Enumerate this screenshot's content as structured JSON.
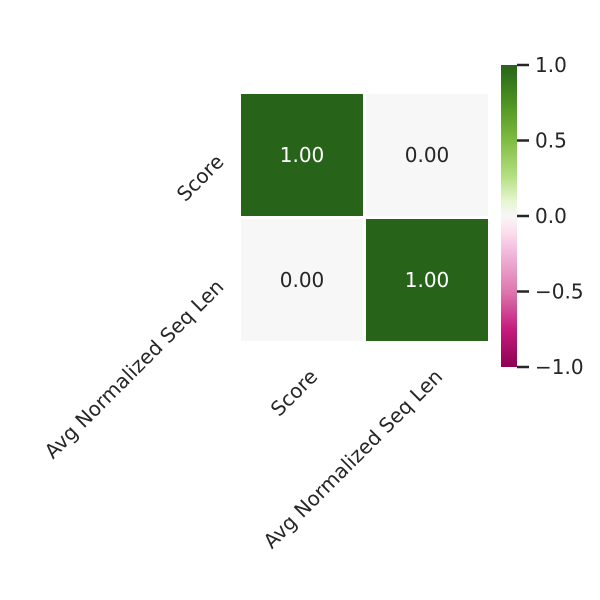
{
  "chart_data": {
    "type": "heatmap",
    "title": "",
    "xlabel": "",
    "ylabel": "",
    "x_categories": [
      "Score",
      "Avg Normalized Seq Len"
    ],
    "y_categories": [
      "Score",
      "Avg Normalized Seq Len"
    ],
    "values": [
      [
        1.0,
        0.0
      ],
      [
        0.0,
        1.0
      ]
    ],
    "value_format": "0.00",
    "colormap": "PiYG",
    "colorbar": {
      "range": [
        -1.0,
        1.0
      ],
      "ticks": [
        1.0,
        0.5,
        0.0,
        -0.5,
        -1.0
      ],
      "tick_labels": [
        "1.0",
        "0.5",
        "0.0",
        "−0.5",
        "−1.0"
      ],
      "stops": [
        {
          "v": -1.0,
          "color": "#8e0152"
        },
        {
          "v": -0.75,
          "color": "#c51b7d"
        },
        {
          "v": -0.5,
          "color": "#de77ae"
        },
        {
          "v": -0.25,
          "color": "#f1b6da"
        },
        {
          "v": -0.1,
          "color": "#fde0ef"
        },
        {
          "v": 0.0,
          "color": "#f7f7f7"
        },
        {
          "v": 0.1,
          "color": "#e6f5d0"
        },
        {
          "v": 0.25,
          "color": "#b8e186"
        },
        {
          "v": 0.5,
          "color": "#7fbc41"
        },
        {
          "v": 0.75,
          "color": "#4d9221"
        },
        {
          "v": 1.0,
          "color": "#276419"
        }
      ]
    },
    "text_colors": {
      "dark_bg": "#ffffff",
      "light_bg": "#262626"
    },
    "grid": false,
    "legend": "right"
  }
}
